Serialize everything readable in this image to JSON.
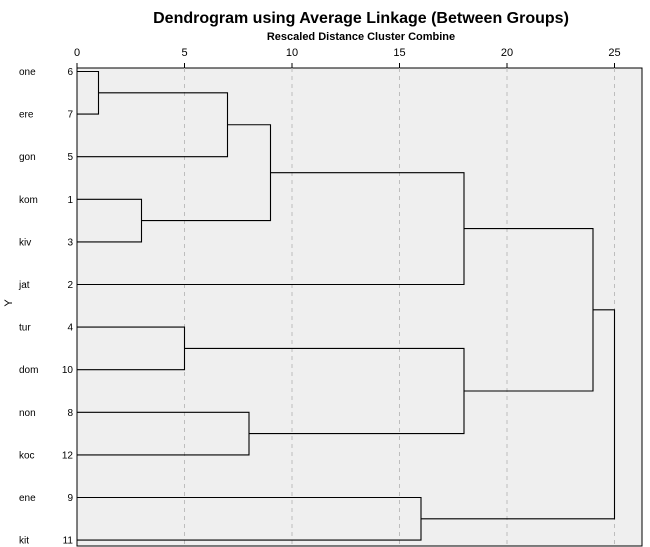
{
  "chart_data": {
    "type": "dendrogram",
    "title": "Dendrogram using Average Linkage (Between Groups)",
    "xlabel": "Rescaled Distance Cluster Combine",
    "ylabel": "Y",
    "xlim": [
      0,
      25
    ],
    "xticks": [
      "0",
      "5",
      "10",
      "15",
      "20",
      "25"
    ],
    "grid": true,
    "leaves": [
      {
        "label": "one",
        "case": "6"
      },
      {
        "label": "ere",
        "case": "7"
      },
      {
        "label": "gon",
        "case": "5"
      },
      {
        "label": "kom",
        "case": "1"
      },
      {
        "label": "kiv",
        "case": "3"
      },
      {
        "label": "jat",
        "case": "2"
      },
      {
        "label": "tur",
        "case": "4"
      },
      {
        "label": "dom",
        "case": "10"
      },
      {
        "label": "non",
        "case": "8"
      },
      {
        "label": "koc",
        "case": "12"
      },
      {
        "label": "ene",
        "case": "9"
      },
      {
        "label": "kit",
        "case": "11"
      }
    ],
    "merges": [
      {
        "id": "m1",
        "a": "one",
        "b": "ere",
        "distance": 1
      },
      {
        "id": "m2",
        "a": "kom",
        "b": "kiv",
        "distance": 3
      },
      {
        "id": "m3",
        "a": "tur",
        "b": "dom",
        "distance": 5
      },
      {
        "id": "m4",
        "a": "m1",
        "b": "gon",
        "distance": 7
      },
      {
        "id": "m5",
        "a": "non",
        "b": "koc",
        "distance": 8
      },
      {
        "id": "m6",
        "a": "m4",
        "b": "m2",
        "distance": 9
      },
      {
        "id": "m7",
        "a": "ene",
        "b": "kit",
        "distance": 16
      },
      {
        "id": "m8",
        "a": "m6",
        "b": "jat",
        "distance": 18
      },
      {
        "id": "m9",
        "a": "m3",
        "b": "m5",
        "distance": 18
      },
      {
        "id": "m10",
        "a": "m8",
        "b": "m9",
        "distance": 24
      },
      {
        "id": "m11",
        "a": "m10",
        "b": "m7",
        "distance": 25
      }
    ]
  },
  "colors": {
    "plot_background": "#efefef",
    "gridline": "#bdbdbd",
    "line": "#000000"
  }
}
